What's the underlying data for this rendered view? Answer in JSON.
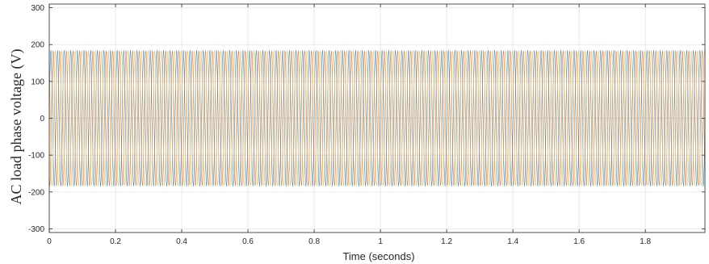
{
  "chart_data": {
    "type": "line",
    "title": "",
    "xlabel": "Time (seconds)",
    "ylabel": "AC load phase voltage (V)",
    "xlim": [
      0,
      1.98
    ],
    "ylim": [
      -310,
      310
    ],
    "grid": true,
    "x_ticks": [
      0,
      0.2,
      0.4,
      0.6,
      0.8,
      1,
      1.2,
      1.4,
      1.6,
      1.8
    ],
    "x_tick_labels": [
      "0",
      "0.2",
      "0.4",
      "0.6",
      "0.8",
      "1",
      "1.2",
      "1.4",
      "1.6",
      "1.8"
    ],
    "y_ticks": [
      -300,
      -200,
      -100,
      0,
      100,
      200,
      300
    ],
    "y_tick_labels": [
      "-300",
      "-200",
      "-100",
      "0",
      "100",
      "200",
      "300"
    ],
    "signal": {
      "waveform": "sine",
      "phases": 3,
      "frequency_hz": 50,
      "amplitude_v": 185,
      "phase_shifts_deg": [
        0,
        -120,
        120
      ]
    },
    "series": [
      {
        "color": "#0072bd"
      },
      {
        "color": "#d95319"
      },
      {
        "color": "#edb120"
      }
    ],
    "colors": {
      "plot_background": "#ffffff",
      "grid": "#e0e0e0",
      "axes": "#262626"
    }
  }
}
